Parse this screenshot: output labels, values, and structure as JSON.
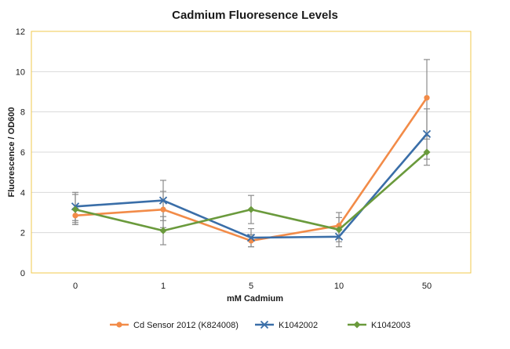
{
  "chart_data": {
    "type": "line",
    "title": "Cadmium Fluoresence Levels",
    "xlabel": "mM Cadmium",
    "ylabel": "Fluorescence / OD600",
    "categories": [
      "0",
      "1",
      "5",
      "10",
      "50"
    ],
    "ylim": [
      0,
      12
    ],
    "yticks": [
      0,
      2,
      4,
      6,
      8,
      10,
      12
    ],
    "grid": "horizontal",
    "legend_position": "bottom",
    "colors": {
      "plot_border": "#f2c94c",
      "gridline": "#d9d9d9",
      "error_bar": "#8c8c8c"
    },
    "series": [
      {
        "name": "Cd Sensor 2012 (K824008)",
        "color": "#f28b48",
        "marker": "circle",
        "values": [
          2.85,
          3.15,
          1.6,
          2.35,
          8.7
        ],
        "errors": [
          0.35,
          0.9,
          0.3,
          0.65,
          1.9
        ]
      },
      {
        "name": "K1042002",
        "color": "#3a6ea8",
        "marker": "x",
        "values": [
          3.3,
          3.6,
          1.75,
          1.8,
          6.9
        ],
        "errors": [
          0.7,
          1.0,
          0.45,
          0.5,
          1.25
        ]
      },
      {
        "name": "K1042003",
        "color": "#6a9a3c",
        "marker": "diamond",
        "values": [
          3.15,
          2.1,
          3.15,
          2.15,
          6.0
        ],
        "errors": [
          0.75,
          0.7,
          0.7,
          0.6,
          0.65
        ]
      }
    ]
  }
}
